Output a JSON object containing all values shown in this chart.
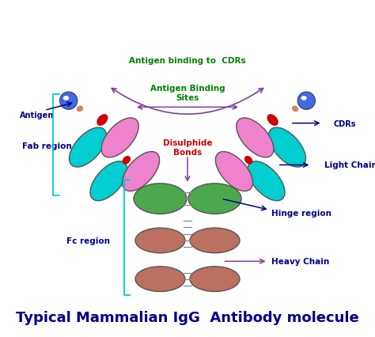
{
  "title": "Typical Mammalian IgG  Antibody molecule",
  "title_fontsize": 13,
  "title_color": "#00008B",
  "bg_color": "white",
  "labels": {
    "antigen_binding_cdrs": "Antigen binding to  CDRs",
    "antigen_binding_sites": "Antigen Binding\nSites",
    "antigen": "Antigen",
    "cdrs": "CDRs",
    "disulphide_bonds": "Disulphide\nBonds",
    "fab_region": "Fab region",
    "light_chain": "Light Chain",
    "hinge_region": "Hinge region",
    "fc_region": "Fc region",
    "heavy_chain": "Heavy Chain"
  },
  "colors": {
    "pink": "#EE82CC",
    "cyan": "#00CED1",
    "green": "#4CA84C",
    "brown": "#BC7060",
    "dark_blue": "#00008B",
    "red": "#CC0000",
    "green_label": "#008000",
    "arrow_purple": "#7B3FA0",
    "steel_blue": "#4169E1",
    "gray_connector": "#888888"
  }
}
